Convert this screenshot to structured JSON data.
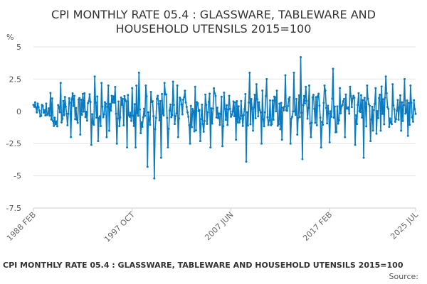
{
  "chart_data": {
    "type": "line",
    "title_line1": "CPI MONTHLY RATE 05.4 : GLASSWARE, TABLEWARE AND",
    "title_line2": "HOUSEHOLD UTENSILS 2015=100",
    "ylabel": "%",
    "xlabel": "",
    "ylim": [
      -7.5,
      5
    ],
    "yticks": [
      {
        "value": 5,
        "label": "5"
      },
      {
        "value": 2.5,
        "label": "2.5"
      },
      {
        "value": 0,
        "label": "0"
      },
      {
        "value": -2.5,
        "label": "-2.5"
      },
      {
        "value": -5,
        "label": "-5"
      },
      {
        "value": -7.5,
        "label": "-7.5"
      }
    ],
    "xticks": [
      {
        "index": 0,
        "label": "1988 FEB"
      },
      {
        "index": 116,
        "label": "1997 OCT"
      },
      {
        "index": 232,
        "label": "2007 JUN"
      },
      {
        "index": 348,
        "label": "2017 FEB"
      },
      {
        "index": 449,
        "label": "2025 JUL"
      }
    ],
    "x_start": "1988 FEB",
    "x_end": "2025 JUL",
    "n_points": 450,
    "series": [
      {
        "name": "CPI MONTHLY RATE 05.4 : GLASSWARE, TABLEWARE AND HOUSEHOLD UTENSILS 2015=100",
        "color": "#0a7bc1",
        "anchors": [
          {
            "i": 0,
            "v": 0.5
          },
          {
            "i": 2,
            "v": 0.7
          },
          {
            "i": 5,
            "v": 0.6
          },
          {
            "i": 8,
            "v": -0.4
          },
          {
            "i": 10,
            "v": 0.5
          },
          {
            "i": 15,
            "v": 0.6
          },
          {
            "i": 22,
            "v": 1.0
          },
          {
            "i": 26,
            "v": -1.0
          },
          {
            "i": 32,
            "v": 2.2
          },
          {
            "i": 36,
            "v": -0.3
          },
          {
            "i": 44,
            "v": -2.0
          },
          {
            "i": 48,
            "v": 1.2
          },
          {
            "i": 55,
            "v": -1.8
          },
          {
            "i": 60,
            "v": 1.4
          },
          {
            "i": 68,
            "v": -2.6
          },
          {
            "i": 72,
            "v": 2.7
          },
          {
            "i": 76,
            "v": -2.3
          },
          {
            "i": 80,
            "v": 2.2
          },
          {
            "i": 86,
            "v": -2.0
          },
          {
            "i": 92,
            "v": 1.2
          },
          {
            "i": 98,
            "v": -2.5
          },
          {
            "i": 104,
            "v": 0.5
          },
          {
            "i": 110,
            "v": -2.8
          },
          {
            "i": 116,
            "v": 1.8
          },
          {
            "i": 120,
            "v": -2.8
          },
          {
            "i": 124,
            "v": 3.0
          },
          {
            "i": 128,
            "v": -1.2
          },
          {
            "i": 132,
            "v": 2.0
          },
          {
            "i": 134,
            "v": -4.3
          },
          {
            "i": 138,
            "v": 1.5
          },
          {
            "i": 142,
            "v": -5.2
          },
          {
            "i": 146,
            "v": 1.2
          },
          {
            "i": 150,
            "v": -3.6
          },
          {
            "i": 154,
            "v": 2.2
          },
          {
            "i": 158,
            "v": -2.8
          },
          {
            "i": 164,
            "v": 2.3
          },
          {
            "i": 170,
            "v": -2.0
          },
          {
            "i": 178,
            "v": 1.6
          },
          {
            "i": 184,
            "v": -2.5
          },
          {
            "i": 190,
            "v": 1.9
          },
          {
            "i": 196,
            "v": -2.3
          },
          {
            "i": 202,
            "v": 1.3
          },
          {
            "i": 208,
            "v": -2.8
          },
          {
            "i": 214,
            "v": 1.2
          },
          {
            "i": 222,
            "v": -2.7
          },
          {
            "i": 230,
            "v": 1.2
          },
          {
            "i": 238,
            "v": -2.2
          },
          {
            "i": 244,
            "v": 0.8
          },
          {
            "i": 250,
            "v": -3.9
          },
          {
            "i": 254,
            "v": 3.0
          },
          {
            "i": 258,
            "v": -1.5
          },
          {
            "i": 262,
            "v": 2.1
          },
          {
            "i": 268,
            "v": -2.5
          },
          {
            "i": 274,
            "v": 2.5
          },
          {
            "i": 280,
            "v": -1.0
          },
          {
            "i": 286,
            "v": 1.6
          },
          {
            "i": 292,
            "v": -2.2
          },
          {
            "i": 296,
            "v": 2.8
          },
          {
            "i": 302,
            "v": -2.5
          },
          {
            "i": 306,
            "v": 3.0
          },
          {
            "i": 310,
            "v": -1.8
          },
          {
            "i": 314,
            "v": 4.2
          },
          {
            "i": 316,
            "v": -3.7
          },
          {
            "i": 320,
            "v": 1.9
          },
          {
            "i": 326,
            "v": -2.0
          },
          {
            "i": 332,
            "v": 1.1
          },
          {
            "i": 338,
            "v": -2.8
          },
          {
            "i": 342,
            "v": 2.0
          },
          {
            "i": 348,
            "v": -2.4
          },
          {
            "i": 352,
            "v": 3.3
          },
          {
            "i": 356,
            "v": -1.6
          },
          {
            "i": 360,
            "v": 1.8
          },
          {
            "i": 366,
            "v": -2.0
          },
          {
            "i": 372,
            "v": 1.9
          },
          {
            "i": 378,
            "v": -2.6
          },
          {
            "i": 382,
            "v": 1.4
          },
          {
            "i": 388,
            "v": -3.6
          },
          {
            "i": 392,
            "v": 2.0
          },
          {
            "i": 396,
            "v": -2.3
          },
          {
            "i": 402,
            "v": 1.8
          },
          {
            "i": 408,
            "v": -1.5
          },
          {
            "i": 414,
            "v": 2.7
          },
          {
            "i": 418,
            "v": -1.2
          },
          {
            "i": 422,
            "v": 2.1
          },
          {
            "i": 426,
            "v": -0.6
          },
          {
            "i": 430,
            "v": 0.3
          },
          {
            "i": 432,
            "v": -1.5
          },
          {
            "i": 436,
            "v": 2.5
          },
          {
            "i": 440,
            "v": -1.9
          },
          {
            "i": 443,
            "v": 2.0
          },
          {
            "i": 446,
            "v": -0.8
          },
          {
            "i": 449,
            "v": -0.2
          }
        ]
      }
    ],
    "grid": true,
    "legend": "none"
  },
  "footer": {
    "title": "CPI MONTHLY RATE 05.4 : GLASSWARE, TABLEWARE AND HOUSEHOLD UTENSILS 2015=100",
    "source": "Source:"
  }
}
